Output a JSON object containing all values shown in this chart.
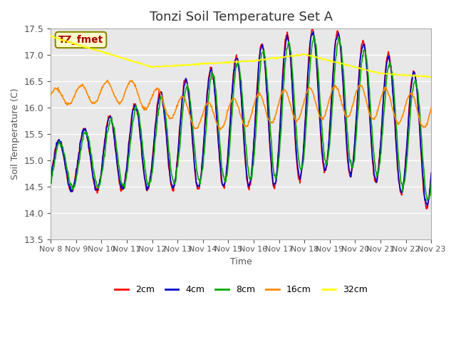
{
  "title": "Tonzi Soil Temperature Set A",
  "xlabel": "Time",
  "ylabel": "Soil Temperature (C)",
  "ylim": [
    13.5,
    17.5
  ],
  "y_ticks": [
    13.5,
    14.0,
    14.5,
    15.0,
    15.5,
    16.0,
    16.5,
    17.0,
    17.5
  ],
  "x_tick_labels": [
    "Nov 8",
    "Nov 9",
    "Nov 10",
    "Nov 11",
    "Nov 12",
    "Nov 13",
    "Nov 14",
    "Nov 15",
    "Nov 16",
    "Nov 17",
    "Nov 18",
    "Nov 19",
    "Nov 20",
    "Nov 21",
    "Nov 22",
    "Nov 23"
  ],
  "colors": {
    "2cm": "#ff0000",
    "4cm": "#0000cc",
    "8cm": "#00aa00",
    "16cm": "#ff8800",
    "32cm": "#ffff00"
  },
  "legend_label": "TZ_fmet",
  "legend_text_color": "#aa0000",
  "legend_bg": "#ffffcc",
  "legend_border": "#888800",
  "bg_color": "#e8e8e8",
  "title_fontsize": 13
}
